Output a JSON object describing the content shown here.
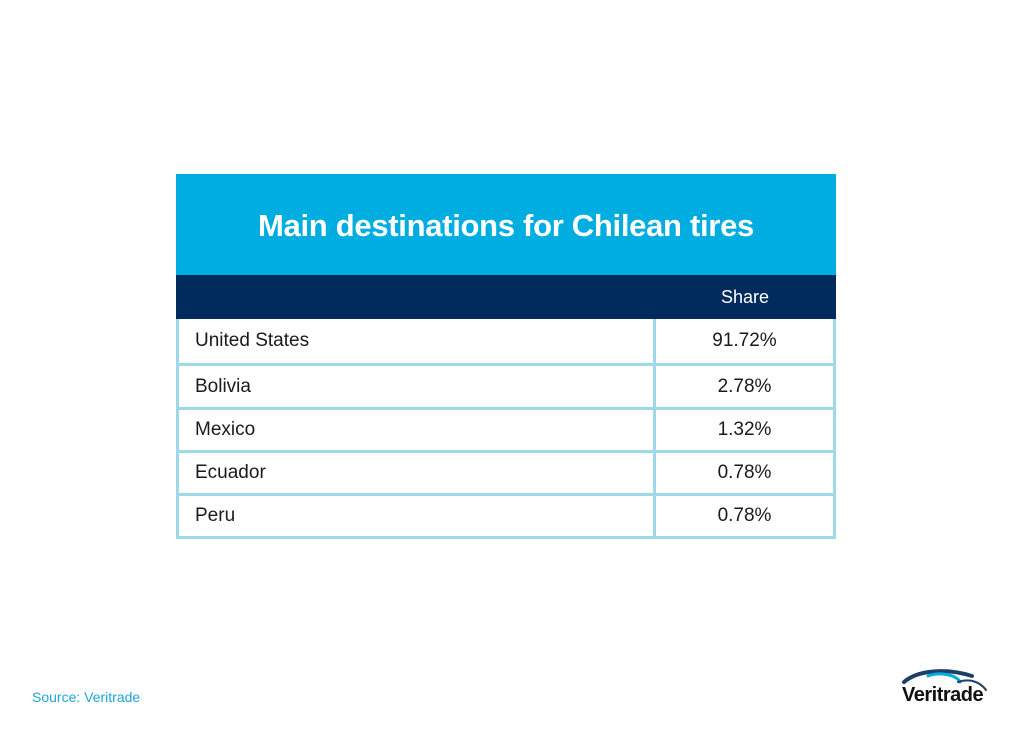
{
  "chart_data": {
    "type": "table",
    "title": "Main destinations for Chilean tires",
    "columns": [
      "",
      "Share"
    ],
    "rows": [
      {
        "country": "United States",
        "share": "91.72%"
      },
      {
        "country": "Bolivia",
        "share": "2.78%"
      },
      {
        "country": "Mexico",
        "share": "1.32%"
      },
      {
        "country": "Ecuador",
        "share": "0.78%"
      },
      {
        "country": "Peru",
        "share": "0.78%"
      }
    ]
  },
  "footer": {
    "source": "Source: Veritrade"
  },
  "logo": {
    "text": "Veritrade",
    "icon": "veritrade-swoosh-icon"
  },
  "colors": {
    "title_band": "#00ade0",
    "header_band": "#002b5c",
    "grid": "#9fd8e6",
    "source_text": "#1ea7d6"
  }
}
